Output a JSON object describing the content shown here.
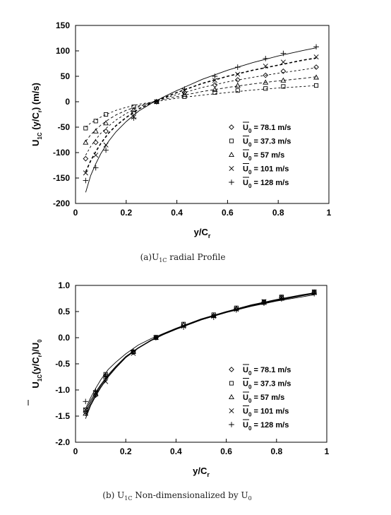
{
  "legend_label_tpl": {
    "prefix": "U",
    "sub": "0",
    "suffix": " = "
  },
  "marker_styles": [
    "diamond",
    "square",
    "triangle",
    "x",
    "plus"
  ],
  "chart_data": [
    {
      "id": "a",
      "type": "scatter",
      "caption": "(a)U1C radial Profile",
      "caption_parts": {
        "pre": "(a)U",
        "sub": "1C",
        "post": " radial Profile"
      },
      "xlabel": "y/Cr",
      "ylabel": "U1C (y/Cr)   (m/s)",
      "xlim": [
        0,
        1
      ],
      "ylim": [
        -200,
        150
      ],
      "xticks": [
        0,
        0.2,
        0.4,
        0.6,
        0.8,
        1
      ],
      "xtick_labels": [
        "0",
        "0.2",
        "0.4",
        "0.6",
        "0.8",
        "1"
      ],
      "yticks": [
        -200,
        -150,
        -100,
        -50,
        0,
        50,
        100,
        150
      ],
      "ytick_labels": [
        "-200",
        "-150",
        "-100",
        "-50",
        "0",
        "50",
        "100",
        "150"
      ],
      "grid": false,
      "legend_position": "lower-right",
      "series": [
        {
          "name": "78.1 m/s",
          "marker": "diamond",
          "x": [
            0.04,
            0.08,
            0.12,
            0.23,
            0.32,
            0.43,
            0.55,
            0.64,
            0.75,
            0.82,
            0.95
          ],
          "y": [
            -112,
            -80,
            -58,
            -22,
            0,
            18,
            33,
            43,
            52,
            60,
            68
          ],
          "fit_x": [
            0.04,
            0.06,
            0.08,
            0.1,
            0.13,
            0.16,
            0.2,
            0.25,
            0.3,
            0.35,
            0.4,
            0.5,
            0.6,
            0.7,
            0.8,
            0.9,
            0.95
          ],
          "fit_y": [
            -105,
            -88,
            -74,
            -62,
            -48,
            -36,
            -23,
            -10,
            -1,
            7,
            14,
            28,
            39,
            48,
            56,
            63,
            67
          ]
        },
        {
          "name": "37.3 m/s",
          "marker": "square",
          "x": [
            0.04,
            0.08,
            0.12,
            0.23,
            0.32,
            0.43,
            0.55,
            0.64,
            0.75,
            0.82,
            0.95
          ],
          "y": [
            -52,
            -38,
            -25,
            -10,
            0,
            10,
            18,
            22,
            26,
            30,
            32
          ],
          "fit_x": [
            0.04,
            0.06,
            0.08,
            0.1,
            0.13,
            0.16,
            0.2,
            0.25,
            0.3,
            0.35,
            0.4,
            0.5,
            0.6,
            0.7,
            0.8,
            0.9,
            0.95
          ],
          "fit_y": [
            -50,
            -42,
            -36,
            -30,
            -23,
            -17,
            -11,
            -5,
            -1,
            3,
            7,
            13,
            18,
            23,
            27,
            30,
            32
          ]
        },
        {
          "name": "57 m/s",
          "marker": "triangle",
          "x": [
            0.04,
            0.08,
            0.12,
            0.23,
            0.32,
            0.43,
            0.55,
            0.64,
            0.75,
            0.82,
            0.95
          ],
          "y": [
            -80,
            -58,
            -42,
            -16,
            0,
            14,
            24,
            32,
            38,
            42,
            48
          ],
          "fit_x": [
            0.04,
            0.06,
            0.08,
            0.1,
            0.13,
            0.16,
            0.2,
            0.25,
            0.3,
            0.35,
            0.4,
            0.5,
            0.6,
            0.7,
            0.8,
            0.9,
            0.95
          ],
          "fit_y": [
            -78,
            -65,
            -55,
            -46,
            -35,
            -26,
            -17,
            -8,
            -1,
            5,
            10,
            20,
            28,
            35,
            41,
            46,
            49
          ]
        },
        {
          "name": "101 m/s",
          "marker": "x",
          "x": [
            0.04,
            0.08,
            0.12,
            0.23,
            0.32,
            0.43,
            0.55,
            0.64,
            0.75,
            0.82,
            0.95
          ],
          "y": [
            -140,
            -105,
            -85,
            -30,
            0,
            22,
            42,
            54,
            70,
            78,
            88
          ],
          "fit_x": [
            0.04,
            0.06,
            0.08,
            0.1,
            0.13,
            0.16,
            0.2,
            0.25,
            0.3,
            0.35,
            0.4,
            0.5,
            0.6,
            0.7,
            0.8,
            0.9,
            0.95
          ],
          "fit_y": [
            -138,
            -116,
            -98,
            -82,
            -62,
            -47,
            -31,
            -14,
            -2,
            8,
            18,
            36,
            50,
            62,
            72,
            82,
            86
          ]
        },
        {
          "name": "128 m/s",
          "marker": "plus",
          "x": [
            0.04,
            0.08,
            0.12,
            0.23,
            0.32,
            0.43,
            0.55,
            0.64,
            0.75,
            0.82,
            0.95
          ],
          "y": [
            -155,
            -130,
            -95,
            -32,
            0,
            25,
            50,
            68,
            85,
            95,
            108
          ],
          "fit_x": [
            0.04,
            0.06,
            0.08,
            0.1,
            0.13,
            0.16,
            0.2,
            0.25,
            0.3,
            0.35,
            0.4,
            0.5,
            0.6,
            0.7,
            0.8,
            0.9,
            0.95
          ],
          "fit_y": [
            -178,
            -145,
            -122,
            -102,
            -78,
            -59,
            -39,
            -18,
            -3,
            10,
            22,
            44,
            62,
            77,
            90,
            101,
            106
          ]
        }
      ]
    },
    {
      "id": "b",
      "type": "scatter",
      "caption": "(b) U1C Non-dimensionalized by U0",
      "caption_parts": {
        "pre": "(b) U",
        "sub": "1C",
        "mid": " Non-dimensionalized by U",
        "sub2": "0"
      },
      "xlabel": "y/Cr",
      "ylabel": "U1C(y/Cr)/U0",
      "xlim": [
        0,
        1
      ],
      "ylim": [
        -2.0,
        1.0
      ],
      "xticks": [
        0,
        0.2,
        0.4,
        0.6,
        0.8,
        1
      ],
      "xtick_labels": [
        "0",
        "0.2",
        "0.4",
        "0.6",
        "0.8",
        "1"
      ],
      "yticks": [
        -2.0,
        -1.5,
        -1.0,
        -0.5,
        0.0,
        0.5,
        1.0
      ],
      "ytick_labels": [
        "-2.0",
        "-1.5",
        "-1.0",
        "-0.5",
        "0.0",
        "0.5",
        "1.0"
      ],
      "grid": false,
      "legend_position": "lower-right",
      "series": [
        {
          "name": "78.1 m/s",
          "marker": "diamond",
          "x": [
            0.04,
            0.08,
            0.12,
            0.23,
            0.32,
            0.43,
            0.55,
            0.64,
            0.75,
            0.82,
            0.95
          ],
          "y": [
            -1.42,
            -1.1,
            -0.72,
            -0.28,
            0.0,
            0.24,
            0.42,
            0.55,
            0.68,
            0.77,
            0.87
          ],
          "fit_x": [
            0.04,
            0.06,
            0.08,
            0.1,
            0.13,
            0.16,
            0.2,
            0.25,
            0.3,
            0.35,
            0.4,
            0.5,
            0.6,
            0.7,
            0.8,
            0.9,
            0.95
          ],
          "fit_y": [
            -1.5,
            -1.28,
            -1.1,
            -0.95,
            -0.75,
            -0.58,
            -0.38,
            -0.2,
            -0.06,
            0.06,
            0.16,
            0.34,
            0.49,
            0.61,
            0.71,
            0.8,
            0.84
          ]
        },
        {
          "name": "37.3 m/s",
          "marker": "square",
          "x": [
            0.04,
            0.08,
            0.12,
            0.23,
            0.32,
            0.43,
            0.55,
            0.64,
            0.75,
            0.82,
            0.95
          ],
          "y": [
            -1.38,
            -1.05,
            -0.7,
            -0.27,
            0.01,
            0.26,
            0.44,
            0.57,
            0.69,
            0.78,
            0.88
          ],
          "fit_x": [
            0.04,
            0.06,
            0.08,
            0.1,
            0.13,
            0.16,
            0.2,
            0.25,
            0.3,
            0.35,
            0.4,
            0.5,
            0.6,
            0.7,
            0.8,
            0.9,
            0.95
          ],
          "fit_y": [
            -1.4,
            -1.2,
            -1.04,
            -0.9,
            -0.71,
            -0.55,
            -0.36,
            -0.19,
            -0.05,
            0.07,
            0.17,
            0.35,
            0.5,
            0.63,
            0.73,
            0.82,
            0.86
          ]
        },
        {
          "name": "57 m/s",
          "marker": "triangle",
          "x": [
            0.04,
            0.08,
            0.12,
            0.23,
            0.32,
            0.43,
            0.55,
            0.64,
            0.75,
            0.82,
            0.95
          ],
          "y": [
            -1.45,
            -1.08,
            -0.74,
            -0.27,
            0.0,
            0.25,
            0.42,
            0.56,
            0.67,
            0.75,
            0.86
          ],
          "fit_x": [
            0.04,
            0.06,
            0.08,
            0.1,
            0.13,
            0.16,
            0.2,
            0.25,
            0.3,
            0.35,
            0.4,
            0.5,
            0.6,
            0.7,
            0.8,
            0.9,
            0.95
          ],
          "fit_y": [
            -1.45,
            -1.24,
            -1.07,
            -0.92,
            -0.73,
            -0.56,
            -0.37,
            -0.2,
            -0.05,
            0.06,
            0.16,
            0.34,
            0.49,
            0.62,
            0.72,
            0.81,
            0.85
          ]
        },
        {
          "name": "101 m/s",
          "marker": "x",
          "x": [
            0.04,
            0.08,
            0.12,
            0.23,
            0.32,
            0.43,
            0.55,
            0.64,
            0.75,
            0.82,
            0.95
          ],
          "y": [
            -1.38,
            -1.05,
            -0.84,
            -0.3,
            0.0,
            0.22,
            0.41,
            0.54,
            0.69,
            0.77,
            0.87
          ],
          "fit_x": [
            0.04,
            0.06,
            0.08,
            0.1,
            0.13,
            0.16,
            0.2,
            0.25,
            0.3,
            0.35,
            0.4,
            0.5,
            0.6,
            0.7,
            0.8,
            0.9,
            0.95
          ],
          "fit_y": [
            -1.36,
            -1.15,
            -0.97,
            -0.81,
            -0.61,
            -0.47,
            -0.31,
            -0.14,
            -0.02,
            0.08,
            0.18,
            0.36,
            0.5,
            0.61,
            0.71,
            0.81,
            0.85
          ]
        },
        {
          "name": "128 m/s",
          "marker": "plus",
          "x": [
            0.04,
            0.08,
            0.12,
            0.23,
            0.32,
            0.43,
            0.55,
            0.64,
            0.75,
            0.82,
            0.95
          ],
          "y": [
            -1.22,
            -1.02,
            -0.74,
            -0.25,
            0.0,
            0.2,
            0.39,
            0.53,
            0.66,
            0.74,
            0.84
          ],
          "fit_x": [
            0.04,
            0.06,
            0.08,
            0.1,
            0.13,
            0.16,
            0.2,
            0.25,
            0.3,
            0.35,
            0.4,
            0.5,
            0.6,
            0.7,
            0.8,
            0.9,
            0.95
          ],
          "fit_y": [
            -1.55,
            -1.3,
            -1.12,
            -0.96,
            -0.75,
            -0.58,
            -0.38,
            -0.2,
            -0.05,
            0.07,
            0.17,
            0.34,
            0.48,
            0.6,
            0.7,
            0.78,
            0.82
          ]
        }
      ]
    }
  ]
}
